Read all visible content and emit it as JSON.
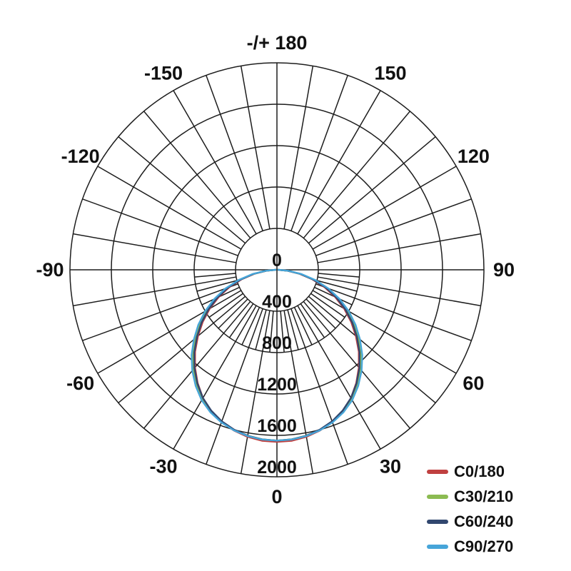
{
  "chart_data": {
    "type": "line",
    "subtype": "polar-photometric-intensity-distribution",
    "title": "",
    "radial_axis": {
      "tick_values": [
        0,
        400,
        800,
        1200,
        1600,
        2000
      ],
      "tick_labels": [
        "0",
        "400",
        "800",
        "1200",
        "1600",
        "2000"
      ],
      "max": 2000,
      "labels_along": "vertical-axis-below-center"
    },
    "angle_labels": [
      {
        "text": "-/+ 180",
        "angle_deg": 180
      },
      {
        "text": "150",
        "angle_deg": 150
      },
      {
        "text": "120",
        "angle_deg": 120
      },
      {
        "text": "90",
        "angle_deg": 90
      },
      {
        "text": "60",
        "angle_deg": 60
      },
      {
        "text": "30",
        "angle_deg": 30
      },
      {
        "text": "0",
        "angle_deg": 0
      },
      {
        "text": "-30",
        "angle_deg": -30
      },
      {
        "text": "-60",
        "angle_deg": -60
      },
      {
        "text": "-90",
        "angle_deg": -90
      },
      {
        "text": "-120",
        "angle_deg": -120
      },
      {
        "text": "-150",
        "angle_deg": -150
      }
    ],
    "grid": {
      "on": true,
      "color": "#1d1d1d",
      "major_spoke_step_deg": 10,
      "minor_spoke_step_deg": 5,
      "minor_band_values": [
        400,
        800
      ],
      "minor_spokes_lower_half_only": true
    },
    "gamma_deg": [
      0,
      5,
      10,
      15,
      20,
      25,
      30,
      35,
      40,
      45,
      50,
      55,
      60,
      65,
      70,
      75,
      80,
      85,
      90
    ],
    "symmetric": true,
    "legend_position": "bottom-right",
    "series": [
      {
        "label": "C0/180",
        "color": "#c04040",
        "values": [
          1663,
          1658,
          1639,
          1608,
          1564,
          1505,
          1430,
          1336,
          1232,
          1119,
          996,
          875,
          750,
          621,
          489,
          353,
          222,
          101,
          12
        ]
      },
      {
        "label": "C30/210",
        "color": "#8cbb52",
        "values": [
          1650,
          1645,
          1629,
          1602,
          1564,
          1510,
          1442,
          1354,
          1255,
          1146,
          1027,
          907,
          782,
          651,
          514,
          372,
          234,
          107,
          12
        ]
      },
      {
        "label": "C60/240",
        "color": "#31476f",
        "values": [
          1650,
          1645,
          1628,
          1599,
          1558,
          1502,
          1431,
          1341,
          1240,
          1129,
          1009,
          889,
          764,
          635,
          501,
          362,
          228,
          104,
          12
        ]
      },
      {
        "label": "C90/270",
        "color": "#46a5d9",
        "values": [
          1650,
          1646,
          1631,
          1606,
          1570,
          1520,
          1455,
          1369,
          1273,
          1166,
          1048,
          928,
          802,
          669,
          530,
          384,
          242,
          111,
          14
        ]
      }
    ]
  }
}
